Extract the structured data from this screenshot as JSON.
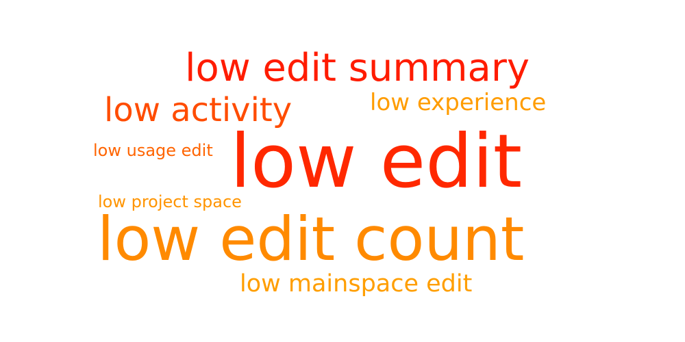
{
  "word_cloud": {
    "words": [
      {
        "text": "low edit",
        "color": "#ff2800"
      },
      {
        "text": "low edit count",
        "color": "#ff8a00"
      },
      {
        "text": "low edit summary",
        "color": "#ff1c00"
      },
      {
        "text": "low activity",
        "color": "#ff4c00"
      },
      {
        "text": "low experience",
        "color": "#ff9c00"
      },
      {
        "text": "low mainspace edit",
        "color": "#ff9e00"
      },
      {
        "text": "low usage edit",
        "color": "#ff6400"
      },
      {
        "text": "low project space",
        "color": "#ff9400"
      }
    ]
  }
}
